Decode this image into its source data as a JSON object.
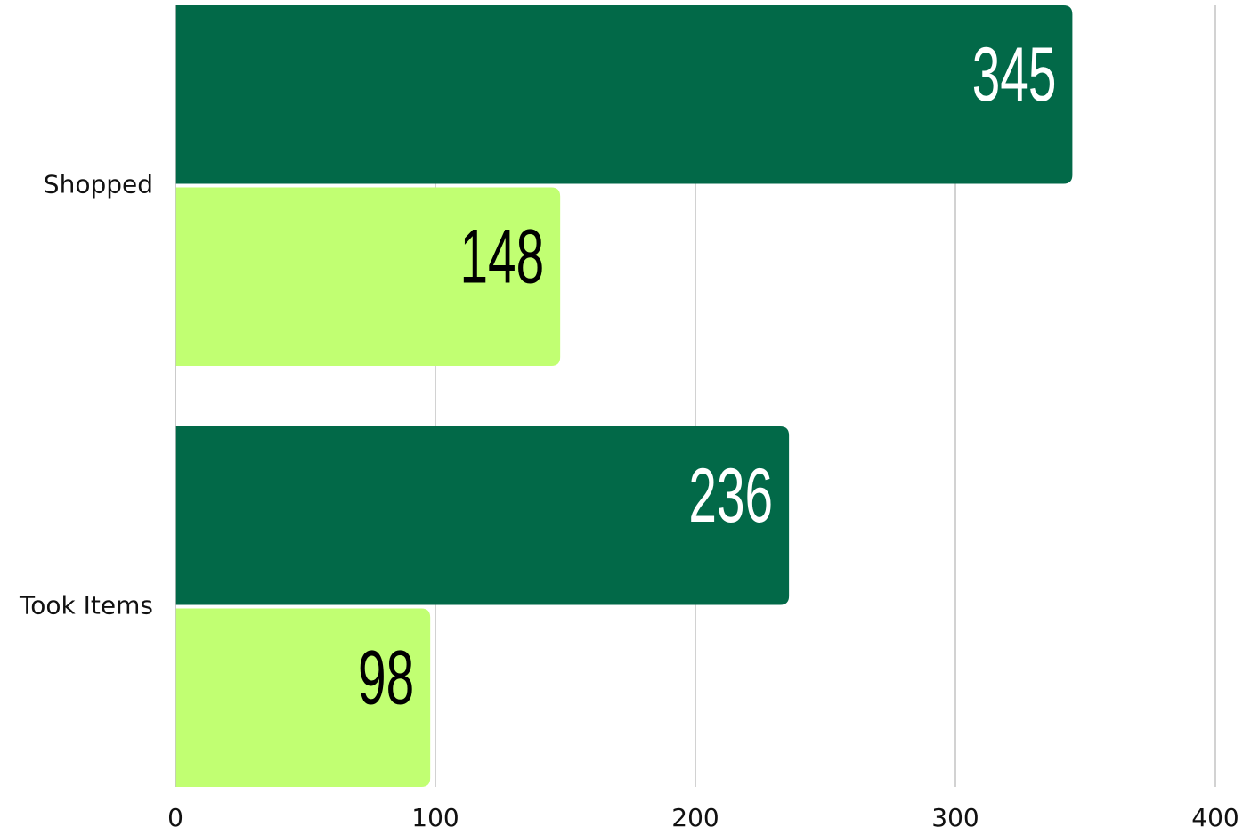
{
  "chart_data": {
    "type": "hbar",
    "categories": [
      "Shopped",
      "Took Items"
    ],
    "series": [
      {
        "color": "#026948",
        "values": [
          345,
          236
        ]
      },
      {
        "color": "#c1ff72",
        "values": [
          148,
          98
        ]
      }
    ],
    "value_label_colors": [
      "#ffffff",
      "#000000"
    ],
    "xlim": [
      0,
      400
    ],
    "xticks": [
      0,
      100,
      200,
      300,
      400
    ],
    "grid": true
  }
}
